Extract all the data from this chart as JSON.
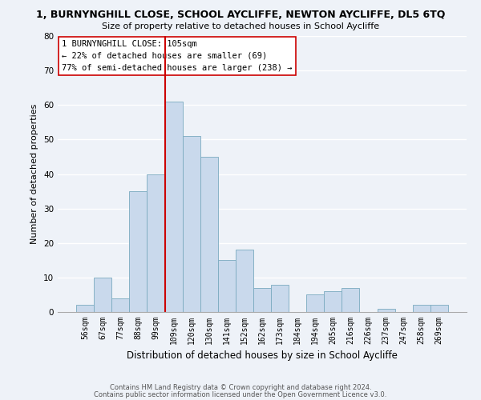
{
  "title": "1, BURNYNGHILL CLOSE, SCHOOL AYCLIFFE, NEWTON AYCLIFFE, DL5 6TQ",
  "subtitle": "Size of property relative to detached houses in School Aycliffe",
  "xlabel": "Distribution of detached houses by size in School Aycliffe",
  "ylabel": "Number of detached properties",
  "bin_labels": [
    "56sqm",
    "67sqm",
    "77sqm",
    "88sqm",
    "99sqm",
    "109sqm",
    "120sqm",
    "130sqm",
    "141sqm",
    "152sqm",
    "162sqm",
    "173sqm",
    "184sqm",
    "194sqm",
    "205sqm",
    "216sqm",
    "226sqm",
    "237sqm",
    "247sqm",
    "258sqm",
    "269sqm"
  ],
  "bar_heights": [
    2,
    10,
    4,
    35,
    40,
    61,
    51,
    45,
    15,
    18,
    7,
    8,
    0,
    5,
    6,
    7,
    0,
    1,
    0,
    2,
    2
  ],
  "bar_color": "#c9d9ec",
  "bar_edge_color": "#7aaabf",
  "bar_width": 1.0,
  "vline_x_idx": 5,
  "vline_color": "#cc0000",
  "ylim": [
    0,
    80
  ],
  "yticks": [
    0,
    10,
    20,
    30,
    40,
    50,
    60,
    70,
    80
  ],
  "annotation_title": "1 BURNYNGHILL CLOSE: 105sqm",
  "annotation_line1": "← 22% of detached houses are smaller (69)",
  "annotation_line2": "77% of semi-detached houses are larger (238) →",
  "footnote1": "Contains HM Land Registry data © Crown copyright and database right 2024.",
  "footnote2": "Contains public sector information licensed under the Open Government Licence v3.0.",
  "bg_color": "#eef2f8",
  "grid_color": "#ffffff"
}
